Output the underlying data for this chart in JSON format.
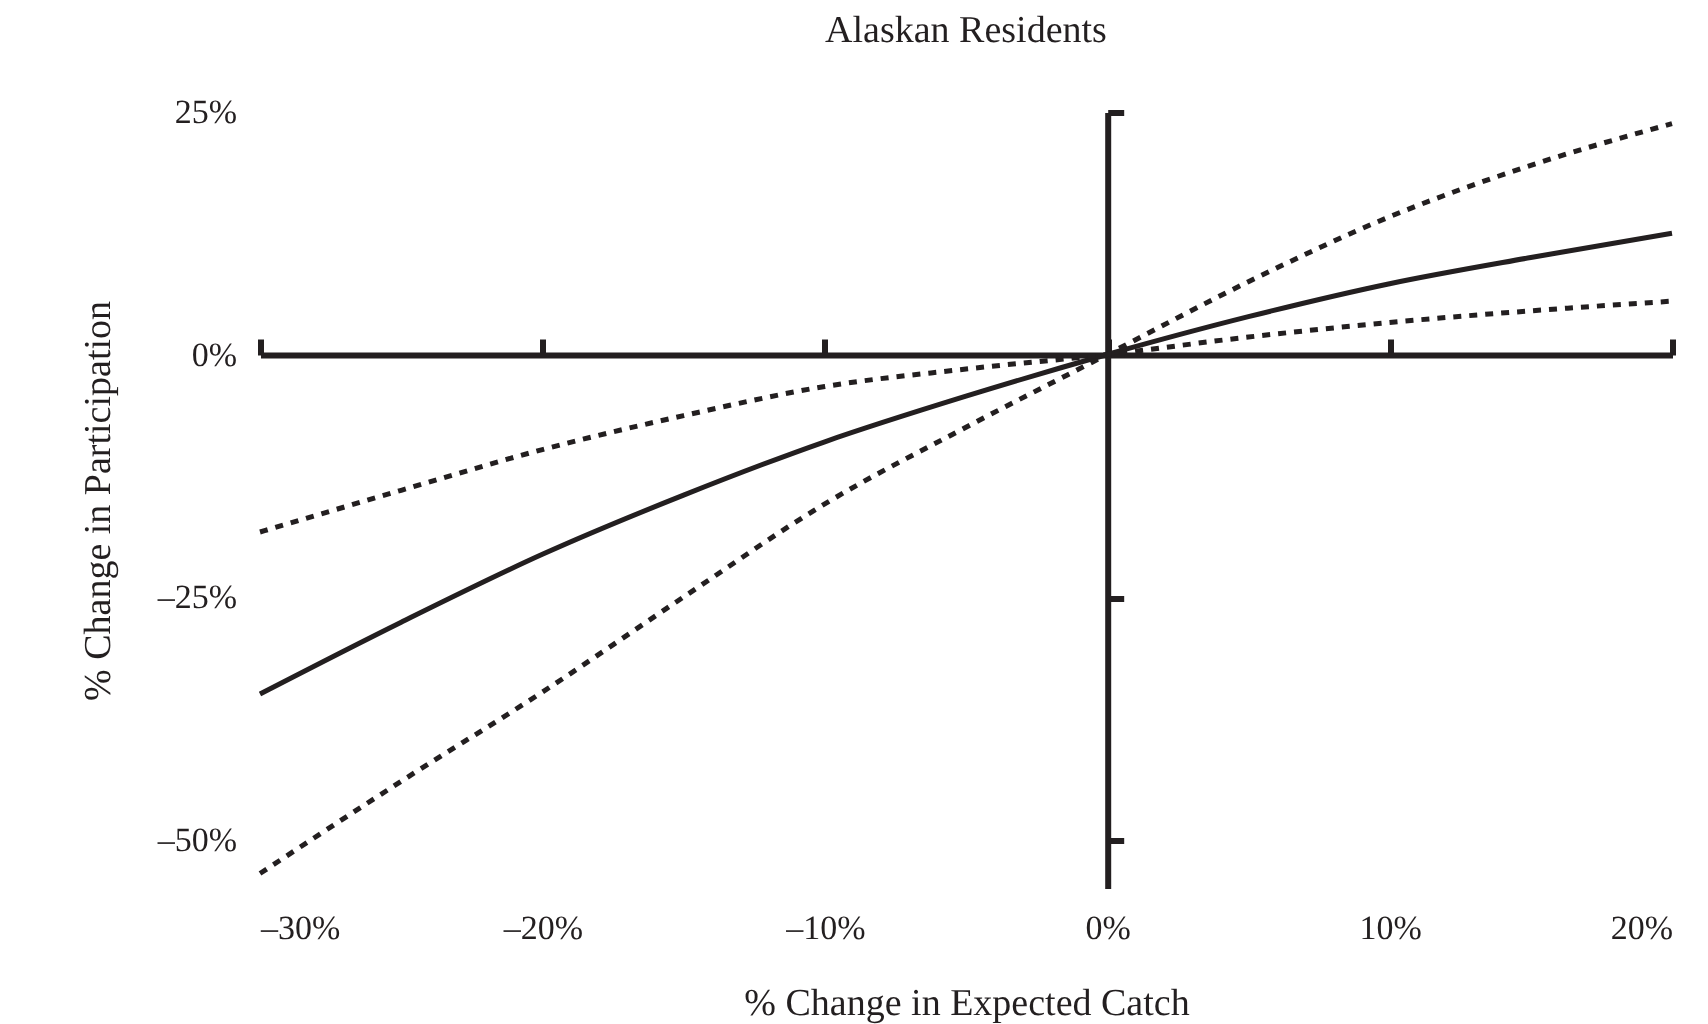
{
  "chart_data": {
    "type": "line",
    "title": "Alaskan Residents",
    "xlabel": "% Change in Expected Catch",
    "ylabel": "% Change in Participation",
    "x": [
      -30,
      -25,
      -20,
      -15,
      -10,
      -5,
      0,
      5,
      10,
      15,
      20
    ],
    "series": [
      {
        "color": "#231f20",
        "line_style": "dotted",
        "values": [
          -53.5,
          -44,
          -34.8,
          -25,
          -15.4,
          -7.5,
          0,
          7.5,
          14.2,
          19.5,
          23.8
        ]
      },
      {
        "color": "#231f20",
        "line_style": "solid",
        "values": [
          -35,
          -27.6,
          -20.6,
          -14.5,
          -9,
          -4.3,
          0,
          3.9,
          7.3,
          10,
          12.5
        ]
      },
      {
        "color": "#231f20",
        "line_style": "dotted",
        "values": [
          -18.3,
          -14,
          -9.8,
          -6.3,
          -3.3,
          -1.5,
          0,
          1.8,
          3.3,
          4.5,
          5.5
        ]
      }
    ],
    "xlim": [
      -30,
      20
    ],
    "xticks": [
      {
        "value": -30,
        "label": "–30%"
      },
      {
        "value": -20,
        "label": "–20%"
      },
      {
        "value": -10,
        "label": "–10%"
      },
      {
        "value": 0,
        "label": "0%"
      },
      {
        "value": 10,
        "label": "10%"
      },
      {
        "value": 20,
        "label": "20%"
      }
    ],
    "ylim": [
      -55,
      25
    ],
    "yticks": [
      {
        "value": 25,
        "label": "25%"
      },
      {
        "value": 0,
        "label": "0%"
      },
      {
        "value": -25,
        "label": "–25%"
      },
      {
        "value": -50,
        "label": "–50%"
      }
    ],
    "marker": "none"
  }
}
